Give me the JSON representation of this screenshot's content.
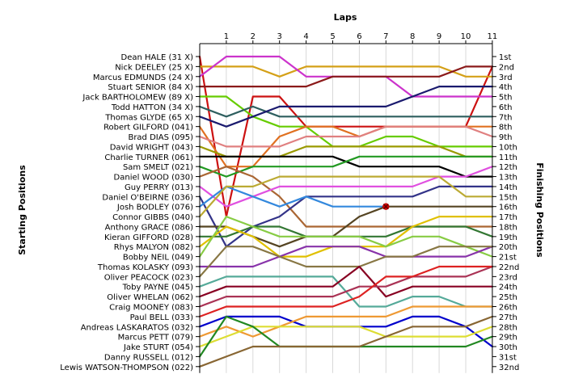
{
  "chart_data": {
    "type": "line",
    "title": "",
    "xlabel": "Laps",
    "ylabel_left": "Starting Positions",
    "ylabel_right": "Finishing Positions",
    "laps": [
      1,
      2,
      3,
      4,
      5,
      6,
      7,
      8,
      9,
      10,
      11
    ],
    "finishing_labels": [
      "1st",
      "2nd",
      "3rd",
      "4th",
      "5th",
      "6th",
      "7th",
      "8th",
      "9th",
      "10th",
      "11th",
      "12th",
      "13th",
      "14th",
      "15th",
      "16th",
      "17th",
      "18th",
      "19th",
      "20th",
      "21st",
      "22nd",
      "23rd",
      "24th",
      "25th",
      "26th",
      "27th",
      "28th",
      "29th",
      "30th",
      "31st",
      "32nd"
    ],
    "grid": "vertical",
    "retired_marker": "x",
    "series": [
      {
        "name": "Dean HALE (31 X)",
        "color": "#cc1111",
        "values": [
          17,
          5,
          5,
          8,
          8,
          8,
          8,
          8,
          8,
          8,
          2
        ]
      },
      {
        "name": "Nick DEELEY (25 X)",
        "color": "#d4a017",
        "values": [
          2,
          2,
          3,
          2,
          2,
          2,
          2,
          2,
          2,
          3,
          3
        ]
      },
      {
        "name": "Marcus EDMUNDS (24 X)",
        "color": "#cc33cc",
        "values": [
          1,
          1,
          1,
          3,
          3,
          3,
          3,
          5,
          5,
          5,
          5
        ]
      },
      {
        "name": "Stuart SENIOR (84 X)",
        "color": "#8b1a1a",
        "values": [
          4,
          4,
          4,
          4,
          3,
          3,
          3,
          3,
          3,
          2,
          2
        ]
      },
      {
        "name": "Jack BARTHOLOMEW (89 X)",
        "color": "#66cc00",
        "values": [
          5,
          7,
          8,
          8,
          10,
          10,
          9,
          9,
          10,
          10,
          10
        ]
      },
      {
        "name": "Todd HATTON (34 X)",
        "color": "#2e5f5f",
        "values": [
          7,
          6,
          7,
          7,
          7,
          7,
          7,
          7,
          7,
          7,
          7
        ]
      },
      {
        "name": "Thomas GLYDE (65 X)",
        "color": "#1a1a6e",
        "values": [
          8,
          7,
          6,
          6,
          6,
          6,
          6,
          5,
          4,
          4,
          4
        ]
      },
      {
        "name": "Robert GILFORD (041)",
        "color": "#e07020",
        "values": [
          12,
          12,
          9,
          8,
          8,
          9,
          8,
          8,
          8,
          8,
          8
        ]
      },
      {
        "name": "Brad DIAS (095)",
        "color": "#e08080",
        "values": [
          10,
          10,
          10,
          9,
          9,
          9,
          8,
          8,
          8,
          8,
          9
        ]
      },
      {
        "name": "David WRIGHT (043)",
        "color": "#9a9a00",
        "values": [
          11,
          11,
          11,
          10,
          10,
          10,
          10,
          10,
          10,
          11,
          11
        ]
      },
      {
        "name": "Charlie TURNER (061)",
        "color": "#000000",
        "values": [
          11,
          11,
          11,
          11,
          11,
          12,
          12,
          12,
          12,
          13,
          13
        ]
      },
      {
        "name": "Sam SMELT (021)",
        "color": "#229922",
        "values": [
          13,
          12,
          12,
          12,
          12,
          11,
          11,
          11,
          11,
          11,
          11
        ]
      },
      {
        "name": "Daniel WOOD (030)",
        "color": "#aa6633",
        "values": [
          12,
          13,
          15,
          18,
          18,
          18,
          18,
          18,
          18,
          18,
          18
        ]
      },
      {
        "name": "Guy PERRY (013)",
        "color": "#e050e0",
        "values": [
          16,
          15,
          14,
          14,
          14,
          14,
          14,
          14,
          13,
          13,
          12
        ]
      },
      {
        "name": "Daniel O'BEIRNE (036)",
        "color": "#333388",
        "values": [
          20,
          18,
          17,
          15,
          15,
          15,
          15,
          15,
          14,
          14,
          14
        ]
      },
      {
        "name": "Josh BODLEY (076)",
        "color": "#3388dd",
        "values": [
          14,
          15,
          16,
          15,
          16,
          16,
          16
        ]
      },
      {
        "name": "Connor GIBBS (040)",
        "color": "#bbaa33",
        "values": [
          14,
          14,
          13,
          13,
          13,
          13,
          13,
          13,
          13,
          15,
          15
        ]
      },
      {
        "name": "Anthony GRACE (086)",
        "color": "#554422",
        "values": [
          18,
          19,
          20,
          19,
          19,
          17,
          16,
          16,
          16,
          16,
          16
        ]
      },
      {
        "name": "Kieran GIFFORD (028)",
        "color": "#337733",
        "values": [
          19,
          18,
          18,
          19,
          19,
          19,
          19,
          18,
          18,
          18,
          19
        ]
      },
      {
        "name": "Rhys MALYON (082)",
        "color": "#e0c000",
        "values": [
          18,
          19,
          21,
          21,
          20,
          20,
          20,
          18,
          17,
          17,
          17
        ]
      },
      {
        "name": "Bobby NEIL (049)",
        "color": "#88cc44",
        "values": [
          17,
          18,
          19,
          19,
          19,
          19,
          20,
          19,
          19,
          20,
          21
        ]
      },
      {
        "name": "Thomas KOLASKY (093)",
        "color": "#8833aa",
        "values": [
          22,
          22,
          21,
          20,
          20,
          20,
          21,
          21,
          21,
          21,
          20
        ]
      },
      {
        "name": "Oliver PEACOCK (023)",
        "color": "#887744",
        "values": [
          20,
          20,
          21,
          22,
          22,
          22,
          21,
          21,
          20,
          20,
          20
        ]
      },
      {
        "name": "Toby PAYNE (045)",
        "color": "#55aa99",
        "values": [
          23,
          23,
          23,
          23,
          23,
          26,
          26,
          25,
          25,
          26,
          26
        ]
      },
      {
        "name": "Oliver WHELAN (062)",
        "color": "#880022",
        "values": [
          24,
          24,
          24,
          24,
          24,
          22,
          25,
          24,
          24,
          24,
          24
        ]
      },
      {
        "name": "Craig MOONEY (083)",
        "color": "#aa3355",
        "values": [
          25,
          25,
          25,
          25,
          25,
          24,
          24,
          23,
          23,
          23,
          22
        ]
      },
      {
        "name": "Paul BELL (033)",
        "color": "#dd2222",
        "values": [
          26,
          26,
          26,
          26,
          26,
          25,
          23,
          23,
          22,
          22,
          22
        ]
      },
      {
        "name": "Andreas LASKARATOS (032)",
        "color": "#0000cc",
        "values": [
          27,
          27,
          27,
          28,
          28,
          28,
          28,
          27,
          27,
          28,
          30
        ]
      },
      {
        "name": "Marcus PETT (079)",
        "color": "#ee9933",
        "values": [
          28,
          29,
          28,
          27,
          27,
          27,
          27,
          26,
          26,
          26,
          26
        ]
      },
      {
        "name": "Jake STURT (054)",
        "color": "#dddd33",
        "values": [
          29,
          28,
          28,
          28,
          28,
          28,
          29,
          29,
          29,
          29,
          28
        ]
      },
      {
        "name": "Danny RUSSELL (012)",
        "color": "#228822",
        "values": [
          27,
          28,
          30,
          30,
          30,
          30,
          30,
          30,
          30,
          30,
          29
        ]
      },
      {
        "name": "Lewis WATSON-THOMPSON (022)",
        "color": "#886633",
        "values": [
          31,
          30,
          30,
          30,
          30,
          30,
          29,
          28,
          28,
          28,
          27
        ]
      }
    ]
  }
}
